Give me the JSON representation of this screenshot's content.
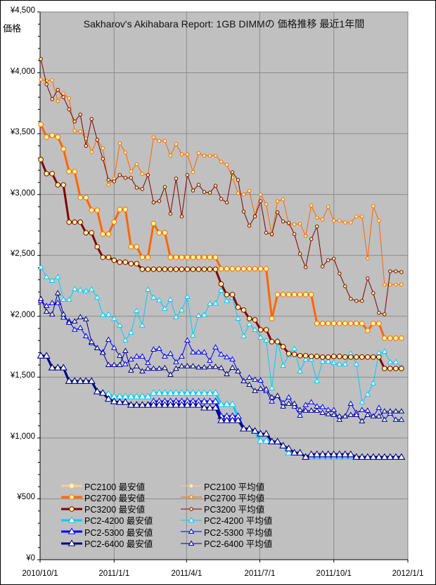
{
  "chart_data": {
    "type": "line",
    "title": "Sakharov's Akihabara Report: 1GB DIMMの 価格推移 最近1年間",
    "ylabel": "価格",
    "xlabel": "",
    "ylim": [
      0,
      4500
    ],
    "y_ticks": [
      "¥0",
      "¥500",
      "¥1,000",
      "¥1,500",
      "¥2,000",
      "¥2,500",
      "¥3,000",
      "¥3,500",
      "¥4,000",
      "¥4,500"
    ],
    "y_tick_values": [
      0,
      500,
      1000,
      1500,
      2000,
      2500,
      3000,
      3500,
      4000,
      4500
    ],
    "x_ticks": [
      "2010/10/1",
      "2011/1/1",
      "2011/4/1",
      "2011/7/1",
      "2011/10/1",
      "2012/1/1"
    ],
    "x_tick_days": [
      0,
      92,
      182,
      273,
      365,
      457
    ],
    "x_range_days": [
      0,
      457
    ],
    "x_first_day": 1,
    "x_step_days": 7,
    "grid": true,
    "legend_position": "bottom-left",
    "series": [
      {
        "name": "PC2100 最安値",
        "color": "#FFCC99",
        "kind": "min",
        "marker": "circle",
        "values": []
      },
      {
        "name": "PC2100 平均値",
        "color": "#FFCC99",
        "kind": "avg",
        "marker": "circle",
        "values": []
      },
      {
        "name": "PC2700 最安値",
        "color": "#FF6600",
        "kind": "min",
        "marker": "circle",
        "values": [
          3576,
          3472,
          3486,
          3472,
          3374,
          3189,
          3189,
          2975,
          2975,
          2871,
          2871,
          2675,
          2675,
          2775,
          2877,
          2877,
          2571,
          2571,
          2484,
          2484,
          2761,
          2686,
          2686,
          2484,
          2484,
          2484,
          2484,
          2484,
          2484,
          2484,
          2484,
          2484,
          2390,
          2390,
          2390,
          2390,
          2390,
          2390,
          2390,
          2390,
          2390,
          1981,
          2178,
          2178,
          2178,
          2178,
          2178,
          2178,
          2178,
          1941,
          1941,
          1941,
          1941,
          1941,
          1941,
          1941,
          1941,
          1941,
          1883,
          1941,
          1941,
          1820,
          1820,
          1820,
          1820
        ]
      },
      {
        "name": "PC2700 平均値",
        "color": "#FF6600",
        "kind": "avg",
        "marker": "circle",
        "values": [
          3945,
          3935,
          3940,
          3767,
          3830,
          3790,
          3524,
          3518,
          3460,
          3350,
          3450,
          3380,
          3080,
          3130,
          3420,
          3345,
          3190,
          3250,
          3170,
          3160,
          3470,
          3440,
          3440,
          3320,
          3415,
          3330,
          3330,
          3185,
          3340,
          3320,
          3320,
          3320,
          3270,
          3245,
          3140,
          3010,
          3000,
          3030,
          2825,
          3000,
          2920,
          2670,
          2945,
          2960,
          2760,
          2755,
          2760,
          2660,
          2910,
          2810,
          2795,
          2900,
          2785,
          2785,
          2770,
          2770,
          2820,
          2820,
          2475,
          2905,
          2785,
          2260,
          2260,
          2260,
          2260
        ]
      },
      {
        "name": "PC3200 最安値",
        "color": "#800000",
        "kind": "min",
        "marker": "circle",
        "values": [
          3287,
          3172,
          3172,
          3079,
          3079,
          2773,
          2773,
          2773,
          2686,
          2686,
          2571,
          2484,
          2484,
          2460,
          2444,
          2444,
          2432,
          2432,
          2386,
          2386,
          2386,
          2386,
          2386,
          2386,
          2386,
          2386,
          2386,
          2386,
          2386,
          2386,
          2386,
          2386,
          2265,
          2178,
          2178,
          2074,
          2051,
          1981,
          1970,
          1889,
          1889,
          1791,
          1791,
          1750,
          1693,
          1687,
          1676,
          1676,
          1670,
          1670,
          1664,
          1664,
          1670,
          1670,
          1665,
          1665,
          1665,
          1665,
          1665,
          1665,
          1665,
          1571,
          1571,
          1571,
          1571
        ]
      },
      {
        "name": "PC3200 平均値",
        "color": "#800000",
        "kind": "avg",
        "marker": "circle",
        "values": [
          4113,
          3905,
          3784,
          3860,
          3800,
          3700,
          3600,
          3657,
          3400,
          3620,
          3450,
          3293,
          3120,
          3108,
          3160,
          3137,
          3137,
          3056,
          3045,
          3160,
          2935,
          2946,
          3062,
          2842,
          3131,
          2820,
          3160,
          3033,
          3080,
          3021,
          3015,
          3073,
          2964,
          2935,
          3183,
          3120,
          2860,
          2744,
          2820,
          2946,
          2686,
          2675,
          2854,
          2779,
          2767,
          2675,
          2513,
          2403,
          2634,
          2738,
          2409,
          2461,
          2473,
          2351,
          2247,
          2143,
          2126,
          2126,
          2311,
          2190,
          2028,
          2016,
          2369,
          2369,
          2363
        ]
      },
      {
        "name": "PC2-4200 最安値",
        "color": "#00CCFF",
        "kind": "min",
        "marker": "triangle",
        "values": [
          1675,
          1675,
          1577,
          1577,
          1577,
          1467,
          1467,
          1467,
          1467,
          1467,
          1381,
          1369,
          1360,
          1340,
          1340,
          1340,
          1340,
          1340,
          1340,
          1340,
          1369,
          1369,
          1369,
          1369,
          1369,
          1369,
          1369,
          1369,
          1369,
          1369,
          1369,
          1369,
          1277,
          1277,
          1277,
          1178,
          1075,
          1075,
          1057,
          976,
          976,
          970,
          970,
          936,
          878,
          878,
          878,
          843,
          843,
          843,
          843,
          843,
          843,
          843,
          843,
          843,
          843,
          843,
          843,
          843,
          843,
          843,
          843,
          843,
          843
        ]
      },
      {
        "name": "PC2-4200 平均値",
        "color": "#00CCFF",
        "kind": "avg",
        "marker": "triangle",
        "values": [
          2403,
          2322,
          2293,
          2322,
          2137,
          2137,
          2224,
          2215,
          2207,
          2220,
          2155,
          2010,
          2015,
          1980,
          1924,
          1802,
          1866,
          2045,
          1924,
          2218,
          2155,
          2132,
          2062,
          2137,
          1993,
          2050,
          2160,
          1843,
          2004,
          2010,
          2103,
          2105,
          2212,
          2126,
          2155,
          1981,
          1837,
          1935,
          1889,
          1825,
          1802,
          1410,
          1802,
          1594,
          1681,
          1733,
          1548,
          1646,
          1646,
          1467,
          1629,
          1629,
          1617,
          1606,
          1606,
          1693,
          1606,
          1294,
          1358,
          1450,
          1698,
          1710,
          1623,
          1623,
          1583
        ]
      },
      {
        "name": "PC2-5300 最安値",
        "color": "#0000FF",
        "kind": "min",
        "marker": "triangle",
        "values": [
          1675,
          1675,
          1577,
          1577,
          1577,
          1467,
          1467,
          1467,
          1467,
          1467,
          1381,
          1369,
          1320,
          1300,
          1294,
          1294,
          1271,
          1271,
          1271,
          1271,
          1300,
          1300,
          1300,
          1300,
          1300,
          1300,
          1300,
          1300,
          1300,
          1300,
          1300,
          1300,
          1178,
          1178,
          1178,
          1178,
          1075,
          1075,
          1057,
          1034,
          1034,
          970,
          970,
          936,
          913,
          878,
          878,
          843,
          855,
          855,
          855,
          855,
          855,
          855,
          855,
          855,
          843,
          843,
          843,
          843,
          843,
          843,
          843,
          843,
          843
        ]
      },
      {
        "name": "PC2-5300 平均値",
        "color": "#0000FF",
        "kind": "avg",
        "marker": "triangle",
        "values": [
          2126,
          2085,
          2109,
          2110,
          1990,
          1960,
          1890,
          1905,
          1837,
          1780,
          1739,
          1704,
          1808,
          1740,
          1675,
          1606,
          1646,
          1670,
          1670,
          1617,
          1727,
          1733,
          1670,
          1693,
          1623,
          1670,
          1802,
          1704,
          1704,
          1704,
          1635,
          1745,
          1687,
          1664,
          1646,
          1548,
          1467,
          1496,
          1479,
          1473,
          1387,
          1300,
          1346,
          1288,
          1334,
          1259,
          1184,
          1271,
          1294,
          1259,
          1254,
          1230,
          1230,
          1150,
          1178,
          1282,
          1207,
          1230,
          1225,
          1178,
          1248,
          1150,
          1201,
          1150,
          1150
        ]
      },
      {
        "name": "PC2-6400 最安値",
        "color": "#000080",
        "kind": "min",
        "marker": "triangle",
        "values": [
          1675,
          1675,
          1577,
          1577,
          1577,
          1467,
          1467,
          1467,
          1467,
          1467,
          1381,
          1369,
          1320,
          1300,
          1294,
          1294,
          1271,
          1271,
          1271,
          1271,
          1271,
          1271,
          1271,
          1271,
          1271,
          1271,
          1271,
          1271,
          1271,
          1248,
          1248,
          1248,
          1144,
          1144,
          1144,
          1144,
          1075,
          1075,
          1057,
          1034,
          1034,
          970,
          970,
          936,
          913,
          878,
          878,
          843,
          866,
          866,
          866,
          866,
          866,
          866,
          866,
          866,
          843,
          843,
          843,
          843,
          843,
          843,
          843,
          843,
          843
        ]
      },
      {
        "name": "PC2-6400 平均値",
        "color": "#000080",
        "kind": "avg",
        "marker": "triangle",
        "values": [
          2143,
          2039,
          2016,
          2190,
          2016,
          1947,
          1958,
          1993,
          1976,
          1790,
          1739,
          1700,
          1600,
          1600,
          1600,
          1716,
          1554,
          1590,
          1548,
          1570,
          1570,
          1570,
          1575,
          1520,
          1570,
          1590,
          1590,
          1590,
          1580,
          1580,
          1585,
          1585,
          1575,
          1525,
          1577,
          1548,
          1467,
          1438,
          1387,
          1404,
          1400,
          1334,
          1346,
          1259,
          1282,
          1282,
          1230,
          1225,
          1225,
          1225,
          1207,
          1196,
          1190,
          1178,
          1178,
          1190,
          1190,
          1138,
          1190,
          1178,
          1178,
          1219,
          1219,
          1219,
          1219
        ]
      }
    ]
  },
  "colors": {
    "plot_bg": "#C0C0C0",
    "grid": "#8C8C8C",
    "marker_fill_circle": "#FFFF99",
    "marker_fill_triangle": "#FFFFFF"
  }
}
